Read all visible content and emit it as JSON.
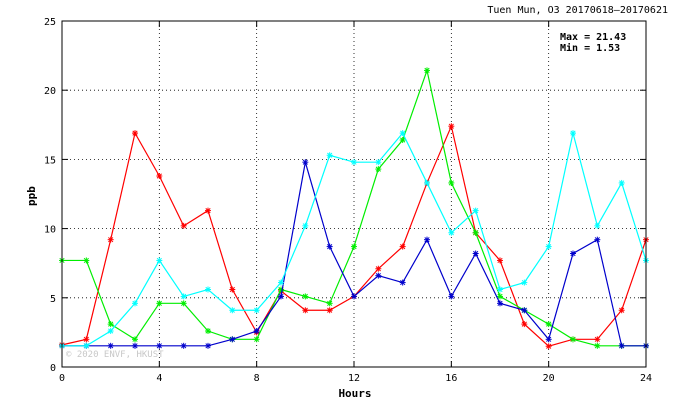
{
  "chart_data": {
    "type": "line",
    "title": "Tuen Mun, O3 20170618—20170621",
    "xlabel": "Hours",
    "ylabel": "ppb",
    "xlim": [
      0,
      24
    ],
    "ylim": [
      0,
      25
    ],
    "x_ticks": [
      0,
      4,
      8,
      12,
      16,
      20,
      24
    ],
    "y_ticks": [
      0,
      5,
      10,
      15,
      20,
      25
    ],
    "grid": true,
    "stats": {
      "max": "Max = 21.43",
      "min": "Min =  1.53"
    },
    "watermark": "© 2020 ENVF, HKUST",
    "x": [
      0,
      1,
      2,
      3,
      4,
      5,
      6,
      7,
      8,
      9,
      10,
      11,
      12,
      13,
      14,
      15,
      16,
      17,
      18,
      19,
      20,
      21,
      22,
      23,
      24
    ],
    "series": [
      {
        "color": "#ff0000",
        "values": [
          1.6,
          2.0,
          9.2,
          16.9,
          13.8,
          10.2,
          11.3,
          5.6,
          2.5,
          5.5,
          4.1,
          4.1,
          5.1,
          7.1,
          8.7,
          13.3,
          17.4,
          9.7,
          7.7,
          3.1,
          1.5,
          2.0,
          2.0,
          4.1,
          9.2
        ]
      },
      {
        "color": "#00ee00",
        "values": [
          7.7,
          7.7,
          3.1,
          2.0,
          4.6,
          4.6,
          2.6,
          2.0,
          2.0,
          5.6,
          5.1,
          4.6,
          8.7,
          14.3,
          16.4,
          21.43,
          13.3,
          9.7,
          5.1,
          4.1,
          3.1,
          2.0,
          1.53,
          1.53,
          1.53
        ]
      },
      {
        "color": "#0000cc",
        "values": [
          1.53,
          1.53,
          1.53,
          1.53,
          1.53,
          1.53,
          1.53,
          2.0,
          2.6,
          5.1,
          14.8,
          8.7,
          5.1,
          6.6,
          6.1,
          9.2,
          5.1,
          8.2,
          4.6,
          4.1,
          2.0,
          8.2,
          9.2,
          1.53,
          1.53
        ]
      },
      {
        "color": "#00ffff",
        "values": [
          1.53,
          1.53,
          2.6,
          4.6,
          7.7,
          5.1,
          5.6,
          4.1,
          4.1,
          6.1,
          10.2,
          15.3,
          14.8,
          14.8,
          16.9,
          13.3,
          9.7,
          11.3,
          5.6,
          6.1,
          8.7,
          16.9,
          10.2,
          13.3,
          7.7
        ]
      }
    ]
  }
}
